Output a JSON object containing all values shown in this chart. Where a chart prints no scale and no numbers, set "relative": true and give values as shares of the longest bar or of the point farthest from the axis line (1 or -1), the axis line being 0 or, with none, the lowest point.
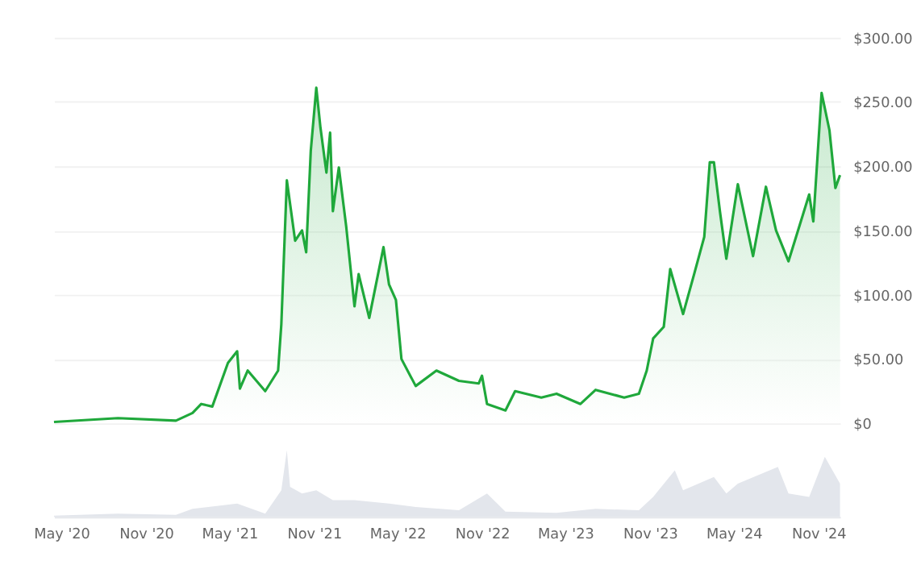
{
  "chart_data": [
    {
      "type": "area",
      "x": [
        "2020-04-15",
        "2020-09-01",
        "2021-01-05",
        "2021-02-10",
        "2021-03-01",
        "2021-03-25",
        "2021-04-28",
        "2021-05-18",
        "2021-05-24",
        "2021-06-10",
        "2021-07-18",
        "2021-08-15",
        "2021-08-22",
        "2021-09-03",
        "2021-09-21",
        "2021-10-06",
        "2021-10-15",
        "2021-10-25",
        "2021-11-06",
        "2021-11-15",
        "2021-11-28",
        "2021-12-06",
        "2021-12-12",
        "2021-12-25",
        "2022-01-10",
        "2022-01-28",
        "2022-02-06",
        "2022-03-01",
        "2022-04-01",
        "2022-04-13",
        "2022-04-28",
        "2022-05-10",
        "2022-06-10",
        "2022-07-25",
        "2022-09-12",
        "2022-10-25",
        "2022-11-01",
        "2022-11-12",
        "2022-12-22",
        "2023-01-12",
        "2023-03-10",
        "2023-04-12",
        "2023-06-03",
        "2023-07-06",
        "2023-09-06",
        "2023-10-08",
        "2023-10-25",
        "2023-11-08",
        "2023-12-01",
        "2023-12-15",
        "2024-01-12",
        "2024-02-05",
        "2024-02-27",
        "2024-03-10",
        "2024-03-19",
        "2024-04-01",
        "2024-04-15",
        "2024-05-10",
        "2024-06-12",
        "2024-07-10",
        "2024-08-01",
        "2024-08-28",
        "2024-10-12",
        "2024-10-21",
        "2024-11-08",
        "2024-11-25",
        "2024-12-08",
        "2024-12-18"
      ],
      "series": [
        {
          "color": "#1fa83b",
          "values": [
            1,
            4,
            2,
            8,
            15,
            13,
            47,
            56,
            27,
            41,
            25,
            41,
            77,
            189,
            142,
            150,
            133,
            212,
            261,
            230,
            195,
            226,
            165,
            199,
            153,
            91,
            116,
            82,
            137,
            108,
            96,
            50,
            29,
            41,
            33,
            31,
            37,
            15,
            10,
            25,
            20,
            23,
            15,
            26,
            20,
            23,
            41,
            66,
            75,
            120,
            85,
            116,
            145,
            203,
            203,
            165,
            128,
            186,
            130,
            184,
            150,
            126,
            178,
            157,
            257,
            228,
            183,
            193
          ]
        }
      ],
      "xlim": [
        "2020-04-15",
        "2024-12-18"
      ],
      "ylim": [
        0,
        300
      ],
      "yticks": [
        {
          "value": 0,
          "label": "$0"
        },
        {
          "value": 50,
          "label": "$50.00"
        },
        {
          "value": 100,
          "label": "$100.00"
        },
        {
          "value": 150,
          "label": "$150.00"
        },
        {
          "value": 200,
          "label": "$200.00"
        },
        {
          "value": 250,
          "label": "$250.00"
        },
        {
          "value": 300,
          "label": "$300.00"
        }
      ],
      "grid": "y",
      "tick_labels": "y"
    },
    {
      "type": "area",
      "relative": true,
      "x": [
        "2020-04-15",
        "2020-09-01",
        "2021-01-05",
        "2021-02-10",
        "2021-05-18",
        "2021-07-18",
        "2021-08-22",
        "2021-09-03",
        "2021-09-10",
        "2021-10-06",
        "2021-11-06",
        "2021-12-12",
        "2022-01-28",
        "2022-04-13",
        "2022-06-10",
        "2022-09-12",
        "2022-11-12",
        "2022-12-22",
        "2023-04-12",
        "2023-07-06",
        "2023-10-08",
        "2023-11-08",
        "2023-12-25",
        "2024-01-12",
        "2024-03-19",
        "2024-04-15",
        "2024-05-10",
        "2024-08-05",
        "2024-08-28",
        "2024-10-12",
        "2024-11-15",
        "2024-12-18"
      ],
      "series": [
        {
          "color": "#e3e6ec",
          "values": [
            0.02,
            0.05,
            0.03,
            0.12,
            0.2,
            0.05,
            0.4,
            1,
            0.45,
            0.35,
            0.4,
            0.25,
            0.25,
            0.2,
            0.15,
            0.1,
            0.35,
            0.08,
            0.06,
            0.12,
            0.1,
            0.3,
            0.7,
            0.4,
            0.6,
            0.35,
            0.5,
            0.75,
            0.35,
            0.3,
            0.9,
            0.5
          ]
        }
      ],
      "xlim": [
        "2020-04-15",
        "2024-12-18"
      ],
      "xticks": [
        {
          "value": "2020-05-01",
          "label": "May '20"
        },
        {
          "value": "2020-11-01",
          "label": "Nov '20"
        },
        {
          "value": "2021-05-01",
          "label": "May '21"
        },
        {
          "value": "2021-11-01",
          "label": "Nov '21"
        },
        {
          "value": "2022-05-01",
          "label": "May '22"
        },
        {
          "value": "2022-11-01",
          "label": "Nov '22"
        },
        {
          "value": "2023-05-01",
          "label": "May '23"
        },
        {
          "value": "2023-11-01",
          "label": "Nov '23"
        },
        {
          "value": "2024-05-01",
          "label": "May '24"
        },
        {
          "value": "2024-11-01",
          "label": "Nov '24"
        }
      ],
      "tick_labels": "x",
      "grid": false
    }
  ]
}
